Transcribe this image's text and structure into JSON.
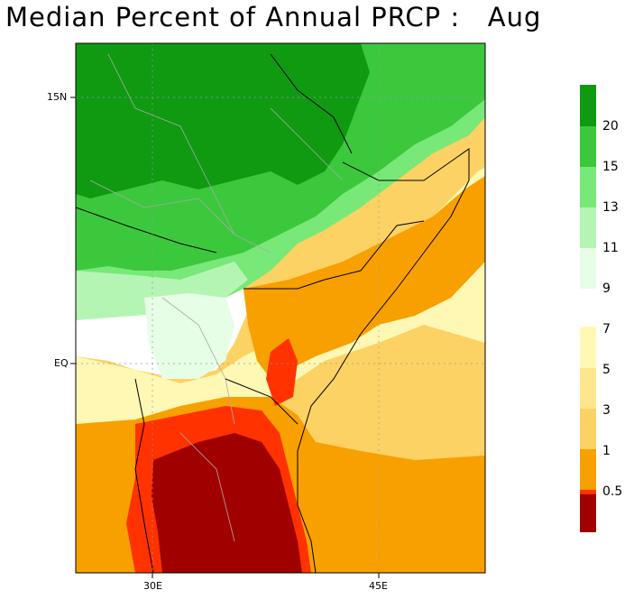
{
  "title": "Median Percent of Annual PRCP :   Aug",
  "axes": {
    "lat_labels": [
      "15N",
      "EQ"
    ],
    "lon_labels": [
      "30E",
      "45E"
    ]
  },
  "colorbar": {
    "upper": [
      {
        "label": "20",
        "color": "#0f9a12"
      },
      {
        "label": "15",
        "color": "#3cc83c"
      },
      {
        "label": "13",
        "color": "#78e878"
      },
      {
        "label": "11",
        "color": "#b4f5b4"
      },
      {
        "label": "9",
        "color": "#e6fde6"
      }
    ],
    "upper_top_color": "#0f9a12",
    "lower": [
      {
        "label": "7",
        "color": "#fff8b4"
      },
      {
        "label": "5",
        "color": "#fee68c"
      },
      {
        "label": "3",
        "color": "#fdd264"
      },
      {
        "label": "1",
        "color": "#f8a000"
      },
      {
        "label": "0.5",
        "color": "#ff3200"
      }
    ],
    "lower_bottom_color": "#a00000"
  }
}
